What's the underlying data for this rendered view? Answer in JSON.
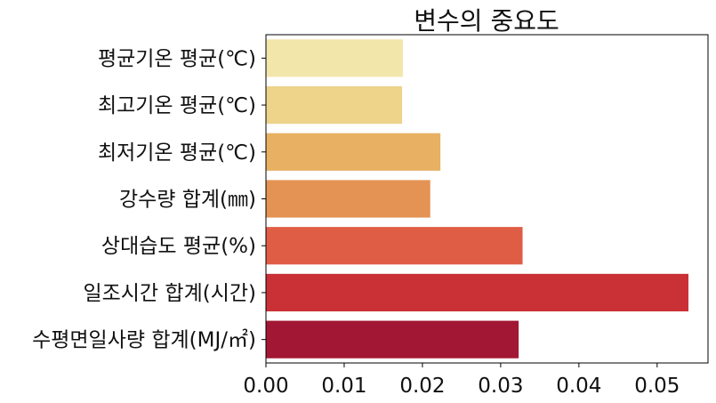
{
  "chart_data": {
    "type": "bar",
    "orientation": "horizontal",
    "title": "변수의 중요도",
    "categories": [
      "평균기온 평균(℃)",
      "최고기온 평균(℃)",
      "최저기온 평균(℃)",
      "강수량 합계(㎜)",
      "상대습도 평균(%)",
      "일조시간 합계(시간)",
      "수평면일사량 합계(MJ/㎡)"
    ],
    "values": [
      0.0175,
      0.0174,
      0.0223,
      0.021,
      0.0328,
      0.054,
      0.0323
    ],
    "colors": [
      "#f3e6ab",
      "#eed38b",
      "#e8b063",
      "#e49355",
      "#e05d45",
      "#c93136",
      "#a21733"
    ],
    "xlim": [
      0,
      0.0565
    ],
    "xticks": [
      "0.00",
      "0.01",
      "0.02",
      "0.03",
      "0.04",
      "0.05"
    ],
    "xtick_values": [
      0,
      0.01,
      0.02,
      0.03,
      0.04,
      0.05
    ],
    "xlabel": "",
    "ylabel": "",
    "grid": false
  }
}
